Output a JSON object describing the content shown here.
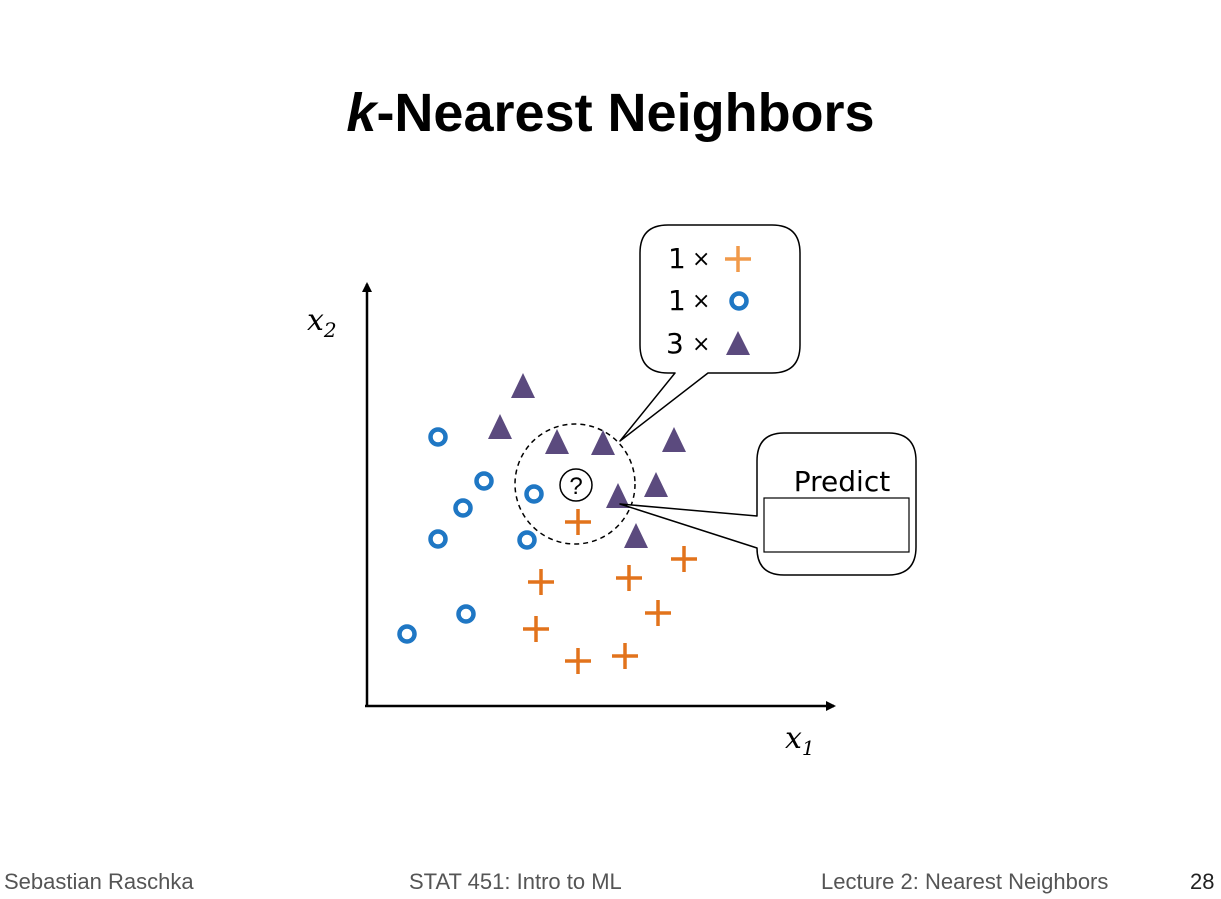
{
  "slide": {
    "title_k": "k",
    "title_rest": "-Nearest Neighbors",
    "footer": {
      "author": "Sebastian Raschka",
      "course": "STAT 451: Intro to ML",
      "lecture": "Lecture 2: Nearest Neighbors",
      "page": "28"
    }
  },
  "diagram": {
    "axis_x_label": "x",
    "axis_x_subscript": "1",
    "axis_y_label": "x",
    "axis_y_subscript": "2",
    "query_label": "?",
    "vote_callout": {
      "rows": [
        {
          "count": "1",
          "times": "×",
          "symbol": "plus-icon"
        },
        {
          "count": "1",
          "times": "×",
          "symbol": "circle-icon"
        },
        {
          "count": "3",
          "times": "×",
          "symbol": "triangle-icon"
        }
      ]
    },
    "predict_callout": {
      "label": "Predict",
      "answer": ""
    },
    "colors": {
      "circle": "#1f77c4",
      "plus": "#e2731c",
      "plus_callout": "#f19a4a",
      "triangle": "#5b4a7e",
      "axis": "#000000"
    }
  }
}
